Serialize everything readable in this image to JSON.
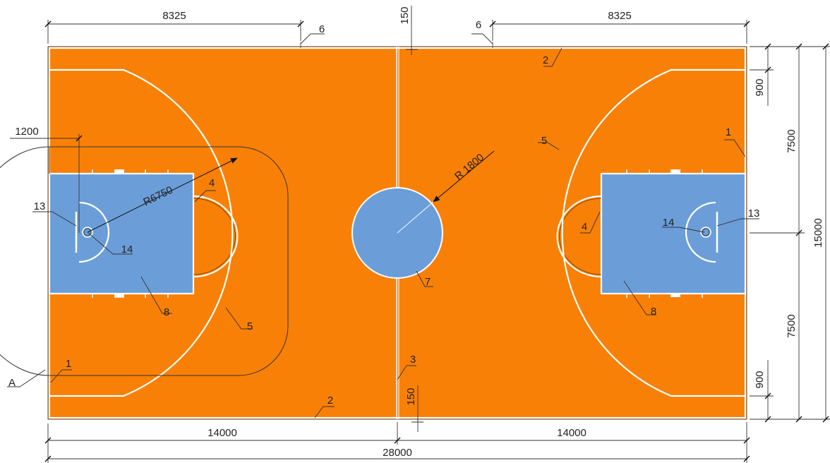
{
  "colors": {
    "court": "#f98006",
    "key": "#6b9ed8",
    "line": "#ffffff",
    "dimension": "#333333",
    "outline": "#555555"
  },
  "dimensions": {
    "half_depth_left": "8325",
    "half_depth_right": "8325",
    "centre_gap_top": "150",
    "centre_gap_bottom": "150",
    "half_length_left": "14000",
    "half_length_right": "14000",
    "total_length": "28000",
    "side_gap_top": "900",
    "side_gap_bottom": "900",
    "half_width_top": "7500",
    "half_width_bottom": "7500",
    "total_width": "15000",
    "basket_offset": "1200",
    "three_point_radius": "R6750",
    "centre_circle_radius": "R 1800"
  },
  "labels": {
    "l1_left": "1",
    "l1_right": "1",
    "l2_top": "2",
    "l2_bottom": "2",
    "l3": "3",
    "l4_left": "4",
    "l4_right": "4",
    "l5_left": "5",
    "l5_right": "5",
    "l6_left": "6",
    "l6_right": "6",
    "l7": "7",
    "l8_left": "8",
    "l8_right": "8",
    "l13_left": "13",
    "l13_right": "13",
    "l14_left": "14",
    "l14_right": "14",
    "lA": "A"
  }
}
